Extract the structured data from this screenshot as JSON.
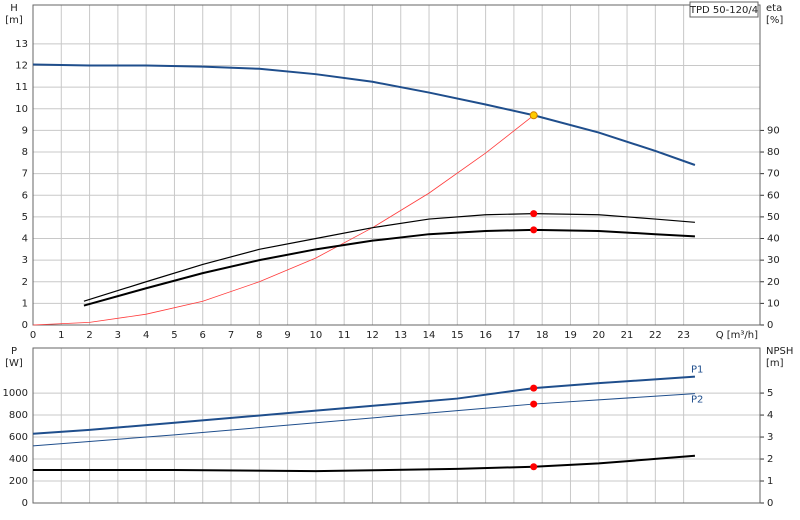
{
  "chart_data": [
    {
      "type": "line",
      "title": "TPD 50-120/4",
      "ylabel": "H",
      "yunit": "[m]",
      "y2label": "eta",
      "y2unit": "[%]",
      "xlabel": "Q [m³/h]",
      "xlim": [
        0,
        25.7
      ],
      "xticks": [
        0,
        1,
        2,
        3,
        4,
        5,
        6,
        7,
        8,
        9,
        10,
        11,
        12,
        13,
        14,
        15,
        16,
        17,
        18,
        19,
        20,
        21,
        22,
        23
      ],
      "ylim": [
        0,
        14.8
      ],
      "yticks": [
        0,
        1,
        2,
        3,
        4,
        5,
        6,
        7,
        8,
        9,
        10,
        11,
        12,
        13
      ],
      "y2lim": [
        0,
        148
      ],
      "y2ticks": [
        0,
        10,
        20,
        30,
        40,
        50,
        60,
        70,
        80,
        90
      ],
      "grid": true,
      "series": [
        {
          "color": "#1f4e8c",
          "width": 2,
          "x": [
            0,
            2,
            4,
            6,
            8,
            10,
            12,
            14,
            16,
            17.7,
            20,
            22,
            23.4
          ],
          "values": [
            12.05,
            12.0,
            12.0,
            11.95,
            11.85,
            11.6,
            11.25,
            10.75,
            10.2,
            9.7,
            8.9,
            8.05,
            7.4
          ]
        },
        {
          "color": "#ff3b3b",
          "width": 0.8,
          "x": [
            0,
            2,
            4,
            6,
            8,
            10,
            12,
            14,
            16,
            17.7
          ],
          "values": [
            0,
            0.12,
            0.5,
            1.1,
            2.0,
            3.1,
            4.5,
            6.1,
            7.95,
            9.7
          ]
        },
        {
          "color": "#000000",
          "width": 1.2,
          "axis": "y2",
          "x": [
            1.8,
            4,
            6,
            8,
            10,
            12,
            14,
            16,
            17.7,
            20,
            22,
            23.4
          ],
          "values": [
            11,
            20,
            28,
            35,
            40,
            45,
            49,
            51,
            51.5,
            51,
            49,
            47.5
          ]
        },
        {
          "color": "#000000",
          "width": 2,
          "axis": "y2",
          "x": [
            1.8,
            4,
            6,
            8,
            10,
            12,
            14,
            16,
            17.7,
            20,
            22,
            23.4
          ],
          "values": [
            9,
            17,
            24,
            30,
            35,
            39,
            42,
            43.5,
            44,
            43.5,
            42,
            41
          ]
        }
      ],
      "points": [
        {
          "x": 17.7,
          "y": 9.7,
          "color": "#ffcc00"
        },
        {
          "x": 17.7,
          "y": 51.5,
          "color": "#ff0000",
          "axis": "y2"
        },
        {
          "x": 17.7,
          "y": 44,
          "color": "#ff0000",
          "axis": "y2"
        }
      ]
    },
    {
      "type": "line",
      "ylabel": "P",
      "yunit": "[W]",
      "y2label": "NPSH",
      "y2unit": "[m]",
      "xlim": [
        0,
        25.7
      ],
      "ylim": [
        0,
        1410
      ],
      "yticks": [
        0,
        200,
        400,
        600,
        800,
        1000
      ],
      "y2lim": [
        0,
        7.05
      ],
      "y2ticks": [
        0,
        1,
        2,
        3,
        4,
        5
      ],
      "grid": true,
      "series": [
        {
          "name": "P1",
          "color": "#1f4e8c",
          "width": 2,
          "x": [
            0,
            2,
            5,
            10,
            15,
            17.7,
            20,
            23.4
          ],
          "values": [
            630,
            665,
            730,
            840,
            950,
            1045,
            1090,
            1150
          ]
        },
        {
          "name": "P2",
          "color": "#1f4e8c",
          "width": 1,
          "x": [
            0,
            5,
            10,
            15,
            17.7,
            23.4
          ],
          "values": [
            520,
            620,
            730,
            840,
            900,
            995
          ]
        },
        {
          "color": "#000000",
          "width": 2,
          "axis": "y2",
          "x": [
            0,
            5,
            10,
            15,
            17.7,
            20,
            23.4
          ],
          "values": [
            1.5,
            1.5,
            1.45,
            1.55,
            1.65,
            1.8,
            2.15
          ]
        }
      ],
      "points": [
        {
          "x": 17.7,
          "y": 1045,
          "color": "#ff0000"
        },
        {
          "x": 17.7,
          "y": 900,
          "color": "#ff0000"
        },
        {
          "x": 17.7,
          "y": 1.65,
          "color": "#ff0000",
          "axis": "y2"
        }
      ]
    }
  ]
}
